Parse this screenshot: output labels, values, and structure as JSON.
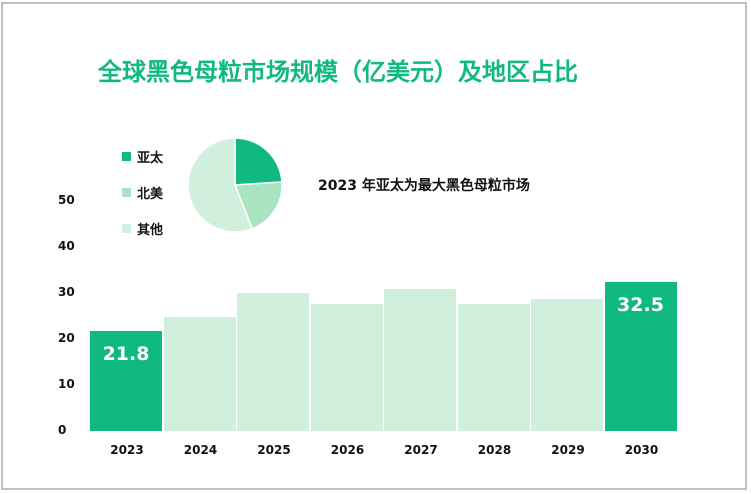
{
  "title": "全球黑色母粒市场规模（亿美元）及地区占比",
  "annotation": "2023 年亚太为最大黑色母粒市场",
  "colors": {
    "highlight": "#10b981",
    "light": "#d0efdc",
    "mid": "#a8e4c0",
    "title": "#10b981"
  },
  "legend": [
    {
      "label": "亚太",
      "color": "#10b981"
    },
    {
      "label": "北美",
      "color": "#a8e4c0"
    },
    {
      "label": "其他",
      "color": "#d0efdc"
    }
  ],
  "yticks": [
    "0",
    "10",
    "20",
    "30",
    "40",
    "50"
  ],
  "chart_data": [
    {
      "type": "bar",
      "title": "全球黑色母粒市场规模（亿美元）",
      "categories": [
        "2023",
        "2024",
        "2025",
        "2026",
        "2027",
        "2028",
        "2029",
        "2030"
      ],
      "values": [
        21.8,
        24.8,
        30.0,
        27.7,
        30.8,
        27.7,
        28.8,
        32.5
      ],
      "data_labels": {
        "2023": "21.8",
        "2030": "32.5"
      },
      "xlabel": "",
      "ylabel": "",
      "ylim": [
        0,
        50
      ],
      "grid": false
    },
    {
      "type": "pie",
      "title": "2023 年地区占比",
      "labels": [
        "亚太",
        "北美",
        "其他"
      ],
      "values": [
        24,
        20,
        56
      ],
      "legend_position": "left"
    }
  ],
  "bars": [
    {
      "year": "2023",
      "label": "21.8",
      "highlight": true
    },
    {
      "year": "2024",
      "label": "",
      "highlight": false
    },
    {
      "year": "2025",
      "label": "",
      "highlight": false
    },
    {
      "year": "2026",
      "label": "",
      "highlight": false
    },
    {
      "year": "2027",
      "label": "",
      "highlight": false
    },
    {
      "year": "2028",
      "label": "",
      "highlight": false
    },
    {
      "year": "2029",
      "label": "",
      "highlight": false
    },
    {
      "year": "2030",
      "label": "32.5",
      "highlight": true
    }
  ]
}
